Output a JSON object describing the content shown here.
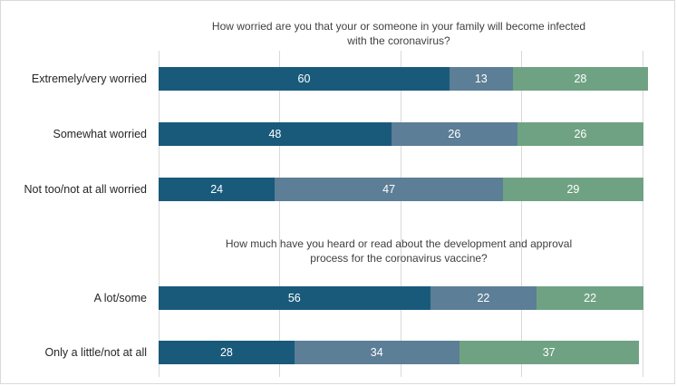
{
  "colors": {
    "series_1": "#195a7b",
    "series_2": "#5c7e96",
    "series_3": "#6fa283",
    "grid": "#d9d9d9",
    "label_text": "#262626",
    "title_text": "#404040"
  },
  "chart_data": [
    {
      "type": "bar",
      "orientation": "horizontal",
      "stacked": true,
      "title": "How worried are you that your or someone in your family will become infected with the coronavirus?",
      "categories": [
        "Extremely/very worried",
        "Somewhat worried",
        "Not too/not at all worried"
      ],
      "series": [
        {
          "values": [
            60,
            48,
            24
          ]
        },
        {
          "values": [
            13,
            26,
            47
          ]
        },
        {
          "values": [
            28,
            26,
            29
          ]
        }
      ],
      "grid": true,
      "legend": "none"
    },
    {
      "type": "bar",
      "orientation": "horizontal",
      "stacked": true,
      "title": "How much have you heard or read about the development and approval process for the coronavirus vaccine?",
      "categories": [
        "A lot/some",
        "Only a little/not at all"
      ],
      "series": [
        {
          "values": [
            56,
            28
          ]
        },
        {
          "values": [
            22,
            34
          ]
        },
        {
          "values": [
            22,
            37
          ]
        }
      ],
      "grid": true,
      "legend": "none"
    }
  ]
}
